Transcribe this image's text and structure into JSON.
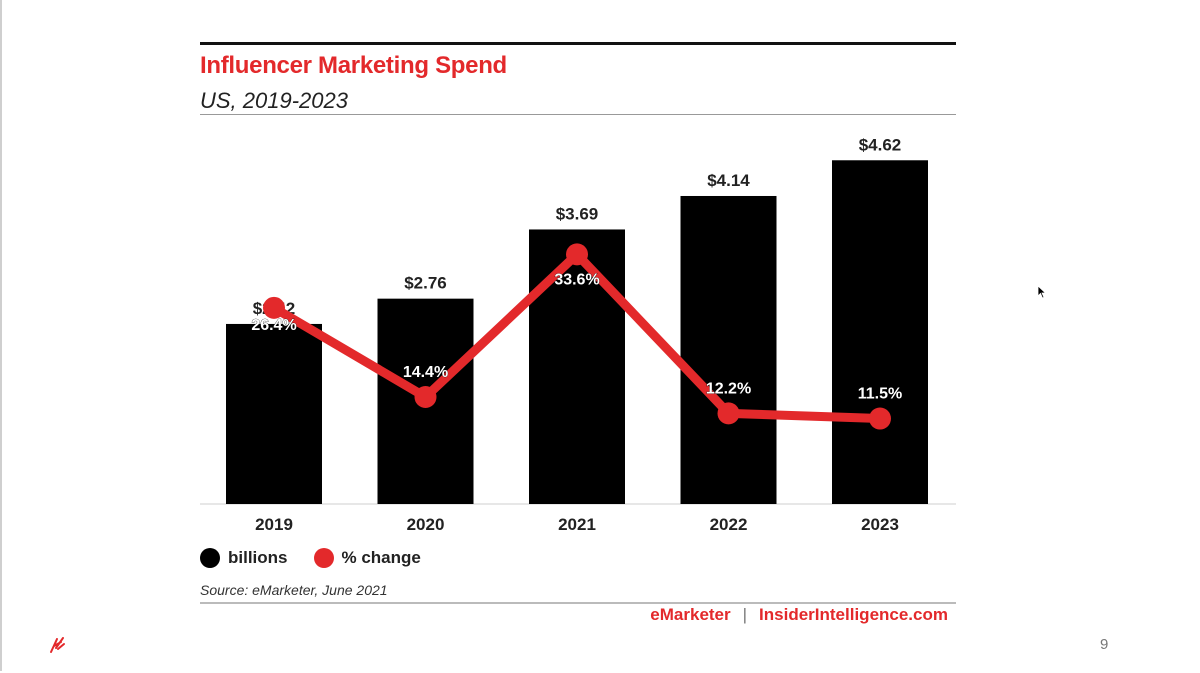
{
  "chart_data": {
    "type": "bar",
    "title": "Influencer Marketing Spend",
    "subtitle": "US, 2019-2023",
    "categories": [
      "2019",
      "2020",
      "2021",
      "2022",
      "2023"
    ],
    "series": [
      {
        "name": "billions",
        "type": "bar",
        "values": [
          2.42,
          2.76,
          3.69,
          4.14,
          4.62
        ],
        "labels": [
          "$2.42",
          "$2.76",
          "$3.69",
          "$4.14",
          "$4.62"
        ],
        "color": "#000000"
      },
      {
        "name": "% change",
        "type": "line",
        "values": [
          26.4,
          14.4,
          33.6,
          12.2,
          11.5
        ],
        "labels": [
          "26.4%",
          "14.4%",
          "33.6%",
          "12.2%",
          "11.5%"
        ],
        "color": "#e3292b"
      }
    ],
    "source": "Source: eMarketer, June 2021",
    "legend_position": "bottom-left"
  },
  "footer": {
    "brand1": "eMarketer",
    "separator": "|",
    "brand2": "InsiderIntelligence.com"
  },
  "slide": {
    "page_number": "9"
  },
  "icons": {
    "logo": "brand-logo-icon",
    "cursor": "mouse-cursor-icon"
  }
}
